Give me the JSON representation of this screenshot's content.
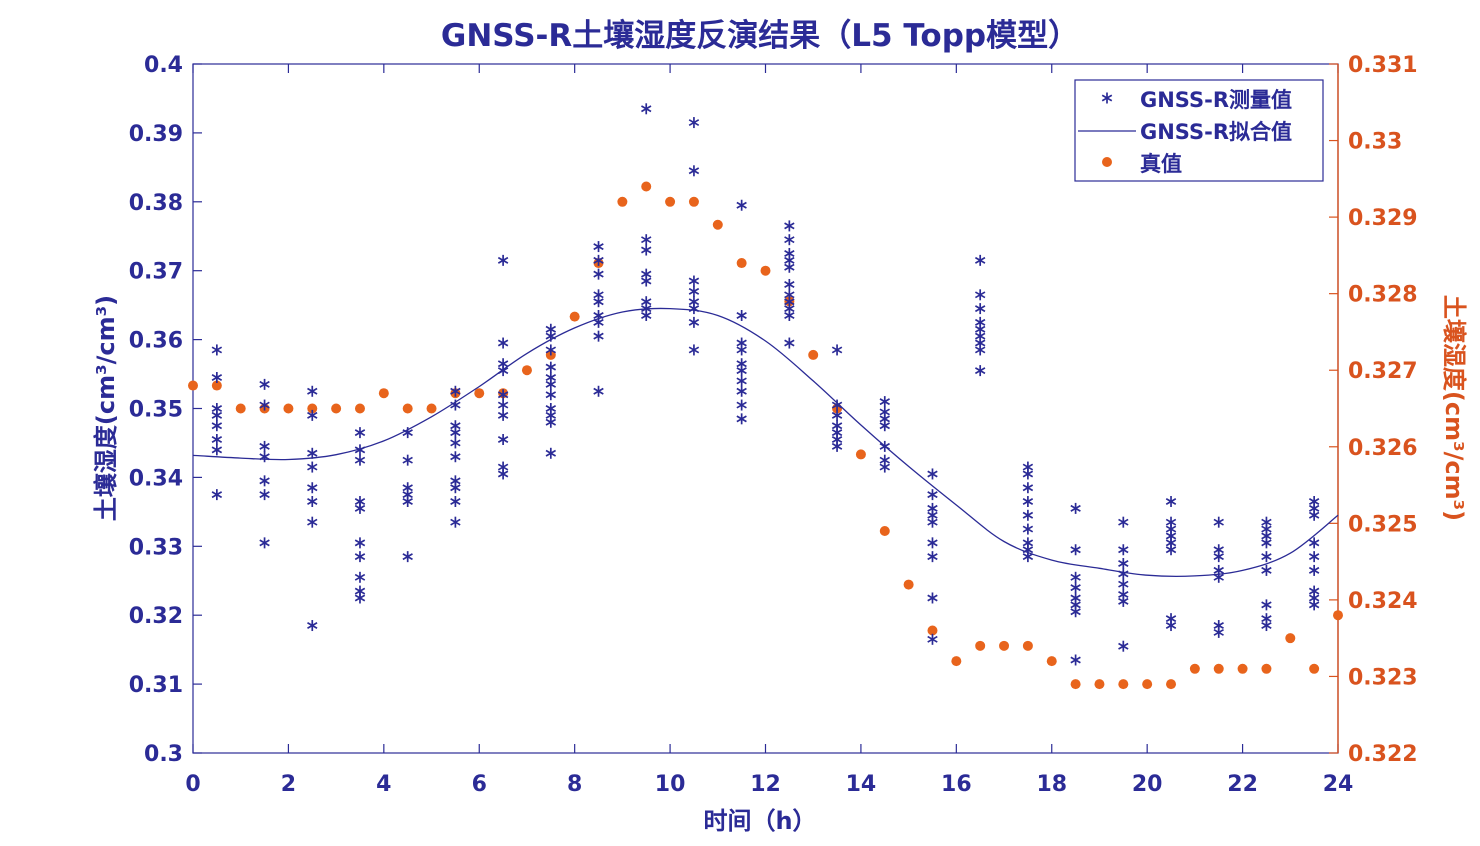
{
  "chart_data": {
    "type": "scatter",
    "title": "GNSS-R土壤湿度反演结果（L5 Topp模型）",
    "xlabel": "时间（h）",
    "ylabel_left": "土壤湿度(cm³/cm³)",
    "ylabel_right": "土壤湿度(cm³/cm³)",
    "xlim": [
      0,
      24
    ],
    "ylim_left": [
      0.3,
      0.4
    ],
    "ylim_right": [
      0.322,
      0.331
    ],
    "x_ticks": [
      "0",
      "2",
      "4",
      "6",
      "8",
      "10",
      "12",
      "14",
      "16",
      "18",
      "20",
      "22",
      "24"
    ],
    "y_ticks_left": [
      "0.3",
      "0.31",
      "0.32",
      "0.33",
      "0.34",
      "0.35",
      "0.36",
      "0.37",
      "0.38",
      "0.39",
      "0.4"
    ],
    "y_ticks_right": [
      "0.322",
      "0.323",
      "0.324",
      "0.325",
      "0.326",
      "0.327",
      "0.328",
      "0.329",
      "0.33",
      "0.331"
    ],
    "grid": false,
    "legend_position": "top-right",
    "legend": [
      "GNSS-R测量值",
      "GNSS-R拟合值",
      "真值"
    ],
    "colors": {
      "measured": "#2b2b96",
      "fit": "#2b2b96",
      "truth": "#e8641c",
      "left_axis": "#2b2b96",
      "right_axis": "#d9531e"
    },
    "series": [
      {
        "name": "GNSS-R测量值",
        "axis": "left",
        "marker": "asterisk",
        "points": [
          [
            0.5,
            0.3585
          ],
          [
            0.5,
            0.3545
          ],
          [
            0.5,
            0.35
          ],
          [
            0.5,
            0.349
          ],
          [
            0.5,
            0.3475
          ],
          [
            0.5,
            0.3455
          ],
          [
            0.5,
            0.344
          ],
          [
            0.5,
            0.3375
          ],
          [
            1.5,
            0.3535
          ],
          [
            1.5,
            0.3505
          ],
          [
            1.5,
            0.3445
          ],
          [
            1.5,
            0.343
          ],
          [
            1.5,
            0.3395
          ],
          [
            1.5,
            0.3375
          ],
          [
            1.5,
            0.3305
          ],
          [
            2.5,
            0.3525
          ],
          [
            2.5,
            0.349
          ],
          [
            2.5,
            0.3435
          ],
          [
            2.5,
            0.3415
          ],
          [
            2.5,
            0.3385
          ],
          [
            2.5,
            0.3365
          ],
          [
            2.5,
            0.3335
          ],
          [
            2.5,
            0.3185
          ],
          [
            3.5,
            0.3465
          ],
          [
            3.5,
            0.344
          ],
          [
            3.5,
            0.3425
          ],
          [
            3.5,
            0.3365
          ],
          [
            3.5,
            0.3355
          ],
          [
            3.5,
            0.3305
          ],
          [
            3.5,
            0.3285
          ],
          [
            3.5,
            0.3255
          ],
          [
            3.5,
            0.3235
          ],
          [
            3.5,
            0.3225
          ],
          [
            4.5,
            0.3465
          ],
          [
            4.5,
            0.3425
          ],
          [
            4.5,
            0.3385
          ],
          [
            4.5,
            0.3375
          ],
          [
            4.5,
            0.3365
          ],
          [
            4.5,
            0.3285
          ],
          [
            5.5,
            0.3525
          ],
          [
            5.5,
            0.3505
          ],
          [
            5.5,
            0.3475
          ],
          [
            5.5,
            0.3465
          ],
          [
            5.5,
            0.345
          ],
          [
            5.5,
            0.343
          ],
          [
            5.5,
            0.3395
          ],
          [
            5.5,
            0.3385
          ],
          [
            5.5,
            0.3365
          ],
          [
            5.5,
            0.3335
          ],
          [
            6.5,
            0.3715
          ],
          [
            6.5,
            0.3595
          ],
          [
            6.5,
            0.3565
          ],
          [
            6.5,
            0.3555
          ],
          [
            6.5,
            0.352
          ],
          [
            6.5,
            0.3505
          ],
          [
            6.5,
            0.349
          ],
          [
            6.5,
            0.3455
          ],
          [
            6.5,
            0.3415
          ],
          [
            6.5,
            0.3405
          ],
          [
            7.5,
            0.3615
          ],
          [
            7.5,
            0.3605
          ],
          [
            7.5,
            0.3585
          ],
          [
            7.5,
            0.356
          ],
          [
            7.5,
            0.3545
          ],
          [
            7.5,
            0.3535
          ],
          [
            7.5,
            0.352
          ],
          [
            7.5,
            0.35
          ],
          [
            7.5,
            0.349
          ],
          [
            7.5,
            0.348
          ],
          [
            7.5,
            0.3435
          ],
          [
            8.5,
            0.3735
          ],
          [
            8.5,
            0.3715
          ],
          [
            8.5,
            0.3695
          ],
          [
            8.5,
            0.3665
          ],
          [
            8.5,
            0.3655
          ],
          [
            8.5,
            0.3635
          ],
          [
            8.5,
            0.3625
          ],
          [
            8.5,
            0.3605
          ],
          [
            8.5,
            0.3525
          ],
          [
            9.5,
            0.3935
          ],
          [
            9.5,
            0.3745
          ],
          [
            9.5,
            0.373
          ],
          [
            9.5,
            0.3695
          ],
          [
            9.5,
            0.3685
          ],
          [
            9.5,
            0.3655
          ],
          [
            9.5,
            0.3645
          ],
          [
            9.5,
            0.3635
          ],
          [
            10.5,
            0.3915
          ],
          [
            10.5,
            0.3845
          ],
          [
            10.5,
            0.3685
          ],
          [
            10.5,
            0.367
          ],
          [
            10.5,
            0.3655
          ],
          [
            10.5,
            0.3645
          ],
          [
            10.5,
            0.3625
          ],
          [
            10.5,
            0.3585
          ],
          [
            11.5,
            0.3795
          ],
          [
            11.5,
            0.3635
          ],
          [
            11.5,
            0.3595
          ],
          [
            11.5,
            0.3585
          ],
          [
            11.5,
            0.3565
          ],
          [
            11.5,
            0.3555
          ],
          [
            11.5,
            0.354
          ],
          [
            11.5,
            0.3525
          ],
          [
            11.5,
            0.3505
          ],
          [
            11.5,
            0.3485
          ],
          [
            12.5,
            0.3765
          ],
          [
            12.5,
            0.3745
          ],
          [
            12.5,
            0.3725
          ],
          [
            12.5,
            0.3715
          ],
          [
            12.5,
            0.3705
          ],
          [
            12.5,
            0.368
          ],
          [
            12.5,
            0.3665
          ],
          [
            12.5,
            0.3655
          ],
          [
            12.5,
            0.3645
          ],
          [
            12.5,
            0.3635
          ],
          [
            12.5,
            0.3595
          ],
          [
            13.5,
            0.3585
          ],
          [
            13.5,
            0.3505
          ],
          [
            13.5,
            0.349
          ],
          [
            13.5,
            0.3475
          ],
          [
            13.5,
            0.3465
          ],
          [
            13.5,
            0.3455
          ],
          [
            13.5,
            0.3445
          ],
          [
            14.5,
            0.351
          ],
          [
            14.5,
            0.3495
          ],
          [
            14.5,
            0.3485
          ],
          [
            14.5,
            0.3475
          ],
          [
            14.5,
            0.3445
          ],
          [
            14.5,
            0.3425
          ],
          [
            14.5,
            0.3415
          ],
          [
            15.5,
            0.3405
          ],
          [
            15.5,
            0.3375
          ],
          [
            15.5,
            0.3355
          ],
          [
            15.5,
            0.3345
          ],
          [
            15.5,
            0.3335
          ],
          [
            15.5,
            0.3305
          ],
          [
            15.5,
            0.3285
          ],
          [
            15.5,
            0.3225
          ],
          [
            15.5,
            0.3165
          ],
          [
            16.5,
            0.3715
          ],
          [
            16.5,
            0.3665
          ],
          [
            16.5,
            0.3645
          ],
          [
            16.5,
            0.3625
          ],
          [
            16.5,
            0.3615
          ],
          [
            16.5,
            0.3605
          ],
          [
            16.5,
            0.3595
          ],
          [
            16.5,
            0.3585
          ],
          [
            16.5,
            0.3555
          ],
          [
            17.5,
            0.3415
          ],
          [
            17.5,
            0.3405
          ],
          [
            17.5,
            0.3385
          ],
          [
            17.5,
            0.3365
          ],
          [
            17.5,
            0.3345
          ],
          [
            17.5,
            0.3325
          ],
          [
            17.5,
            0.3305
          ],
          [
            17.5,
            0.3295
          ],
          [
            17.5,
            0.3285
          ],
          [
            18.5,
            0.3355
          ],
          [
            18.5,
            0.3295
          ],
          [
            18.5,
            0.3255
          ],
          [
            18.5,
            0.324
          ],
          [
            18.5,
            0.3225
          ],
          [
            18.5,
            0.3215
          ],
          [
            18.5,
            0.3205
          ],
          [
            18.5,
            0.3135
          ],
          [
            19.5,
            0.3335
          ],
          [
            19.5,
            0.3295
          ],
          [
            19.5,
            0.3275
          ],
          [
            19.5,
            0.326
          ],
          [
            19.5,
            0.3245
          ],
          [
            19.5,
            0.323
          ],
          [
            19.5,
            0.322
          ],
          [
            19.5,
            0.3155
          ],
          [
            20.5,
            0.3365
          ],
          [
            20.5,
            0.3335
          ],
          [
            20.5,
            0.3325
          ],
          [
            20.5,
            0.3315
          ],
          [
            20.5,
            0.3305
          ],
          [
            20.5,
            0.3295
          ],
          [
            20.5,
            0.3195
          ],
          [
            20.5,
            0.3185
          ],
          [
            21.5,
            0.3335
          ],
          [
            21.5,
            0.3295
          ],
          [
            21.5,
            0.3285
          ],
          [
            21.5,
            0.3265
          ],
          [
            21.5,
            0.3255
          ],
          [
            21.5,
            0.3185
          ],
          [
            21.5,
            0.3175
          ],
          [
            22.5,
            0.3335
          ],
          [
            22.5,
            0.3325
          ],
          [
            22.5,
            0.3315
          ],
          [
            22.5,
            0.3305
          ],
          [
            22.5,
            0.3285
          ],
          [
            22.5,
            0.3265
          ],
          [
            22.5,
            0.3215
          ],
          [
            22.5,
            0.3195
          ],
          [
            22.5,
            0.3185
          ],
          [
            23.5,
            0.3365
          ],
          [
            23.5,
            0.3355
          ],
          [
            23.5,
            0.3345
          ],
          [
            23.5,
            0.3305
          ],
          [
            23.5,
            0.3285
          ],
          [
            23.5,
            0.3265
          ],
          [
            23.5,
            0.3235
          ],
          [
            23.5,
            0.3225
          ],
          [
            23.5,
            0.3215
          ]
        ]
      },
      {
        "name": "GNSS-R拟合值",
        "axis": "left",
        "marker": "line",
        "points": [
          [
            0,
            0.3432
          ],
          [
            1,
            0.3428
          ],
          [
            2,
            0.3426
          ],
          [
            3,
            0.3433
          ],
          [
            4,
            0.3453
          ],
          [
            5,
            0.3488
          ],
          [
            6,
            0.3532
          ],
          [
            7,
            0.358
          ],
          [
            8,
            0.3617
          ],
          [
            9,
            0.364
          ],
          [
            10,
            0.3645
          ],
          [
            11,
            0.3635
          ],
          [
            12,
            0.3598
          ],
          [
            13,
            0.354
          ],
          [
            14,
            0.3476
          ],
          [
            15,
            0.3416
          ],
          [
            16,
            0.336
          ],
          [
            17,
            0.3307
          ],
          [
            18,
            0.328
          ],
          [
            19,
            0.3268
          ],
          [
            20,
            0.3258
          ],
          [
            21,
            0.3257
          ],
          [
            22,
            0.3265
          ],
          [
            23,
            0.329
          ],
          [
            24,
            0.3345
          ]
        ]
      },
      {
        "name": "真值",
        "axis": "right",
        "marker": "dot",
        "points": [
          [
            0,
            0.3268
          ],
          [
            0.5,
            0.3268
          ],
          [
            1,
            0.3265
          ],
          [
            1.5,
            0.3265
          ],
          [
            2,
            0.3265
          ],
          [
            2.5,
            0.3265
          ],
          [
            3,
            0.3265
          ],
          [
            3.5,
            0.3265
          ],
          [
            4,
            0.3267
          ],
          [
            4.5,
            0.3265
          ],
          [
            5,
            0.3265
          ],
          [
            5.5,
            0.3267
          ],
          [
            6,
            0.3267
          ],
          [
            6.5,
            0.3267
          ],
          [
            7,
            0.327
          ],
          [
            7.5,
            0.3272
          ],
          [
            8,
            0.3277
          ],
          [
            8.5,
            0.3284
          ],
          [
            9,
            0.3292
          ],
          [
            9.5,
            0.3294
          ],
          [
            10,
            0.3292
          ],
          [
            10.5,
            0.3292
          ],
          [
            11,
            0.3289
          ],
          [
            11.5,
            0.3284
          ],
          [
            12,
            0.3283
          ],
          [
            12.5,
            0.3279
          ],
          [
            13,
            0.3272
          ],
          [
            13.5,
            0.3265
          ],
          [
            14,
            0.3259
          ],
          [
            14.5,
            0.3249
          ],
          [
            15,
            0.3242
          ],
          [
            15.5,
            0.3236
          ],
          [
            16,
            0.3232
          ],
          [
            16.5,
            0.3234
          ],
          [
            17,
            0.3234
          ],
          [
            17.5,
            0.3234
          ],
          [
            18,
            0.3232
          ],
          [
            18.5,
            0.3229
          ],
          [
            19,
            0.3229
          ],
          [
            19.5,
            0.3229
          ],
          [
            20,
            0.3229
          ],
          [
            20.5,
            0.3229
          ],
          [
            21,
            0.3231
          ],
          [
            21.5,
            0.3231
          ],
          [
            22,
            0.3231
          ],
          [
            22.5,
            0.3231
          ],
          [
            23,
            0.3235
          ],
          [
            23.5,
            0.3231
          ],
          [
            24,
            0.3238
          ]
        ]
      }
    ]
  }
}
